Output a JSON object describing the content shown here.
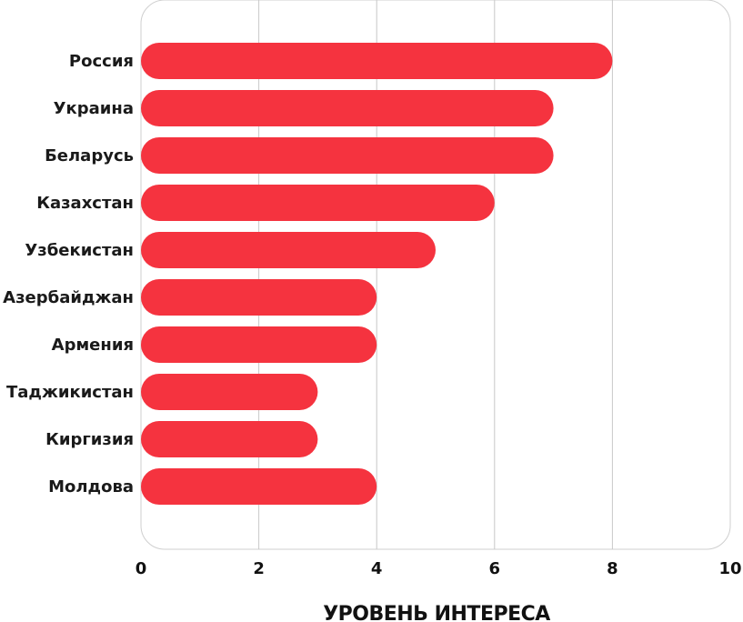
{
  "chart_data": {
    "type": "bar",
    "orientation": "horizontal",
    "categories": [
      "Россия",
      "Украина",
      "Беларусь",
      "Казахстан",
      "Узбекистан",
      "Азербайджан",
      "Армения",
      "Таджикистан",
      "Киргизия",
      "Молдова"
    ],
    "values": [
      8,
      7,
      7,
      6,
      5,
      4,
      4,
      3,
      3,
      4
    ],
    "xlabel": "УРОВЕНЬ ИНТЕРЕСА",
    "xlim": [
      0,
      10
    ],
    "xticks": [
      "0",
      "2",
      "4",
      "6",
      "8",
      "10"
    ],
    "grid": "vertical",
    "legend": "none",
    "bar_color": "#F5333F",
    "grid_color": "#C8C8C8"
  }
}
